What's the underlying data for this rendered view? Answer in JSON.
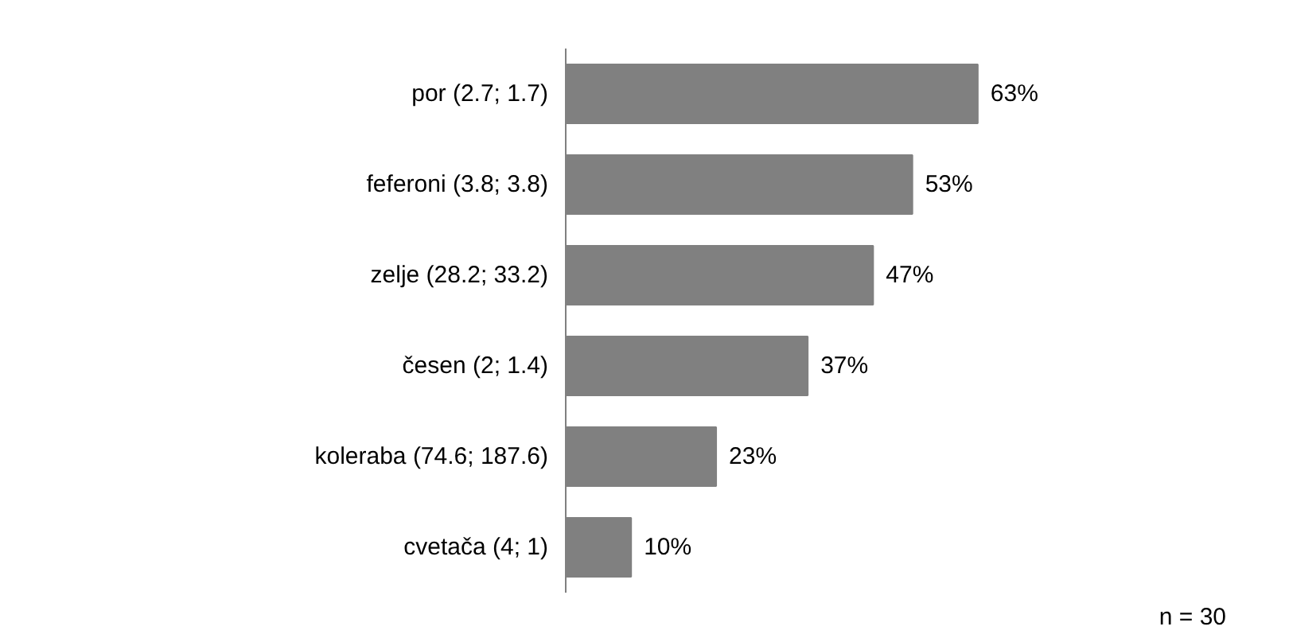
{
  "chart_data": {
    "type": "bar",
    "orientation": "horizontal",
    "categories": [
      "por (2.7; 1.7)",
      "feferoni (3.8; 3.8)",
      "zelje (28.2; 33.2)",
      "česen (2; 1.4)",
      "koleraba (74.6; 187.6)",
      "cvetača (4; 1)"
    ],
    "values": [
      63,
      53,
      47,
      37,
      23,
      10
    ],
    "value_labels": [
      "63%",
      "53%",
      "47%",
      "37%",
      "23%",
      "10%"
    ],
    "color": "#808080",
    "grid": false,
    "annotations": [
      "n = 30"
    ]
  }
}
